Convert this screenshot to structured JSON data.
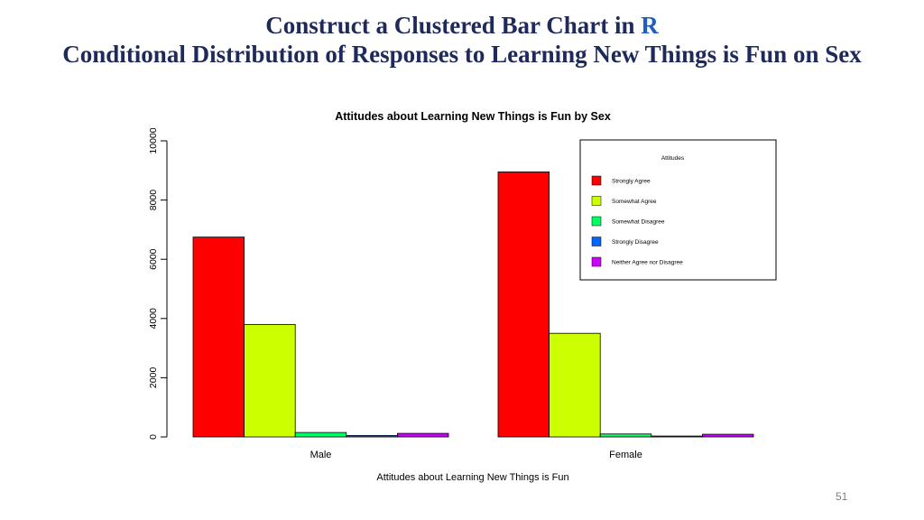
{
  "slide": {
    "title_line1_prefix": "Construct a Clustered Bar Chart in ",
    "title_line1_r": "R",
    "title_line2": "Conditional Distribution of Responses to Learning New Things is Fun on Sex",
    "page_number": "51"
  },
  "chart_data": {
    "type": "bar",
    "title": "Attitudes about Learning New Things is Fun by Sex",
    "xlabel": "Attitudes about Learning New Things is Fun",
    "ylabel": "",
    "categories": [
      "Male",
      "Female"
    ],
    "ylim": [
      0,
      10000
    ],
    "yticks": [
      0,
      2000,
      4000,
      6000,
      8000,
      10000
    ],
    "legend_title": "Attitudes",
    "legend_position": "top-right",
    "grid": false,
    "series": [
      {
        "name": "Strongly Agree",
        "color": "#ff0000",
        "values": [
          6750,
          8950
        ]
      },
      {
        "name": "Somewhat Agree",
        "color": "#ccff00",
        "values": [
          3800,
          3500
        ]
      },
      {
        "name": "Somewhat Disagree",
        "color": "#00ff66",
        "values": [
          150,
          100
        ]
      },
      {
        "name": "Strongly Disagree",
        "color": "#0066ff",
        "values": [
          50,
          30
        ]
      },
      {
        "name": "Neither Agree nor Disagree",
        "color": "#cc00ff",
        "values": [
          120,
          90
        ]
      }
    ]
  }
}
